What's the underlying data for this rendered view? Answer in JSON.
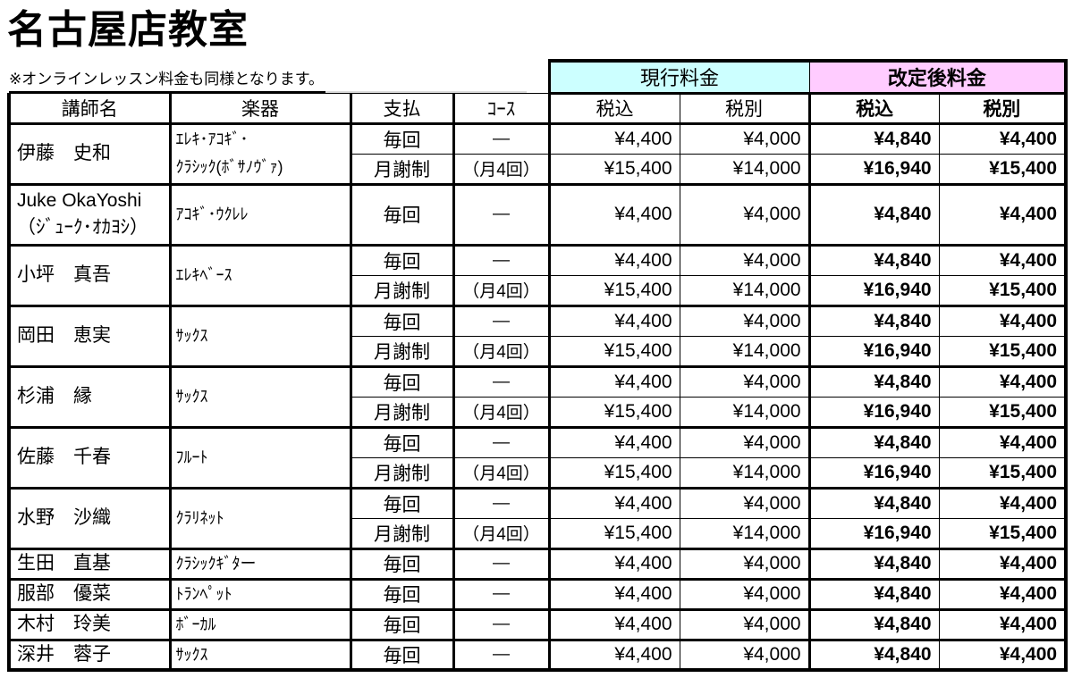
{
  "page": {
    "title": "名古屋店教室",
    "note": "※オンラインレッスン料金も同様となります。"
  },
  "table": {
    "column_headers": [
      "講師名",
      "楽器",
      "支払",
      "ｺｰｽ"
    ],
    "current": {
      "label": "現行料金",
      "color": "#CCFFFF",
      "sub": [
        "税込",
        "税別"
      ]
    },
    "revised": {
      "label": "改定後料金",
      "color": "#FFCCFF",
      "sub": [
        "税込",
        "税別"
      ]
    },
    "rows": [
      {
        "instructor": "伊藤　史和",
        "instrument": "ｴﾚｷ･ｱｺｷﾞ･\nｸﾗｼｯｸ(ﾎﾞｻﾉｳﾞｧ)",
        "plans": [
          {
            "payment": "毎回",
            "course": "―",
            "current_incl": "¥4,400",
            "current_excl": "¥4,000",
            "revised_incl": "¥4,840",
            "revised_excl": "¥4,400"
          },
          {
            "payment": "月謝制",
            "course": "（月4回）",
            "current_incl": "¥15,400",
            "current_excl": "¥14,000",
            "revised_incl": "¥16,940",
            "revised_excl": "¥15,400"
          }
        ]
      },
      {
        "instructor": "Juke OkaYoshi\n（ｼﾞｭｰｸ･ｵｶﾖｼ）",
        "instrument": "ｱｺｷﾞ･ｳｸﾚﾚ",
        "tall": true,
        "plans": [
          {
            "payment": "毎回",
            "course": "―",
            "current_incl": "¥4,400",
            "current_excl": "¥4,000",
            "revised_incl": "¥4,840",
            "revised_excl": "¥4,400"
          }
        ]
      },
      {
        "instructor": "小坪　真吾",
        "instrument": "ｴﾚｷﾍﾞｰｽ",
        "plans": [
          {
            "payment": "毎回",
            "course": "―",
            "current_incl": "¥4,400",
            "current_excl": "¥4,000",
            "revised_incl": "¥4,840",
            "revised_excl": "¥4,400"
          },
          {
            "payment": "月謝制",
            "course": "（月4回）",
            "current_incl": "¥15,400",
            "current_excl": "¥14,000",
            "revised_incl": "¥16,940",
            "revised_excl": "¥15,400"
          }
        ]
      },
      {
        "instructor": "岡田　恵実",
        "instrument": "ｻｯｸｽ",
        "plans": [
          {
            "payment": "毎回",
            "course": "―",
            "current_incl": "¥4,400",
            "current_excl": "¥4,000",
            "revised_incl": "¥4,840",
            "revised_excl": "¥4,400"
          },
          {
            "payment": "月謝制",
            "course": "（月4回）",
            "current_incl": "¥15,400",
            "current_excl": "¥14,000",
            "revised_incl": "¥16,940",
            "revised_excl": "¥15,400"
          }
        ]
      },
      {
        "instructor": "杉浦　縁",
        "instrument": "ｻｯｸｽ",
        "plans": [
          {
            "payment": "毎回",
            "course": "―",
            "current_incl": "¥4,400",
            "current_excl": "¥4,000",
            "revised_incl": "¥4,840",
            "revised_excl": "¥4,400"
          },
          {
            "payment": "月謝制",
            "course": "（月4回）",
            "current_incl": "¥15,400",
            "current_excl": "¥14,000",
            "revised_incl": "¥16,940",
            "revised_excl": "¥15,400"
          }
        ]
      },
      {
        "instructor": "佐藤　千春",
        "instrument": "ﾌﾙｰﾄ",
        "plans": [
          {
            "payment": "毎回",
            "course": "―",
            "current_incl": "¥4,400",
            "current_excl": "¥4,000",
            "revised_incl": "¥4,840",
            "revised_excl": "¥4,400"
          },
          {
            "payment": "月謝制",
            "course": "（月4回）",
            "current_incl": "¥15,400",
            "current_excl": "¥14,000",
            "revised_incl": "¥16,940",
            "revised_excl": "¥15,400"
          }
        ]
      },
      {
        "instructor": "水野　沙織",
        "instrument": "ｸﾗﾘﾈｯﾄ",
        "plans": [
          {
            "payment": "毎回",
            "course": "―",
            "current_incl": "¥4,400",
            "current_excl": "¥4,000",
            "revised_incl": "¥4,840",
            "revised_excl": "¥4,400"
          },
          {
            "payment": "月謝制",
            "course": "（月4回）",
            "current_incl": "¥15,400",
            "current_excl": "¥14,000",
            "revised_incl": "¥16,940",
            "revised_excl": "¥15,400"
          }
        ]
      },
      {
        "instructor": "生田　直基",
        "instrument": "ｸﾗｼｯｸｷﾞﾀー",
        "plans": [
          {
            "payment": "毎回",
            "course": "―",
            "current_incl": "¥4,400",
            "current_excl": "¥4,000",
            "revised_incl": "¥4,840",
            "revised_excl": "¥4,400"
          }
        ]
      },
      {
        "instructor": "服部　優菜",
        "instrument": "ﾄﾗﾝﾍﾟｯﾄ",
        "plans": [
          {
            "payment": "毎回",
            "course": "―",
            "current_incl": "¥4,400",
            "current_excl": "¥4,000",
            "revised_incl": "¥4,840",
            "revised_excl": "¥4,400"
          }
        ]
      },
      {
        "instructor": "木村　玲美",
        "instrument": "ﾎﾞｰｶﾙ",
        "plans": [
          {
            "payment": "毎回",
            "course": "―",
            "current_incl": "¥4,400",
            "current_excl": "¥4,000",
            "revised_incl": "¥4,840",
            "revised_excl": "¥4,400"
          }
        ]
      },
      {
        "instructor": "深井　蓉子",
        "instrument": "ｻｯｸｽ",
        "plans": [
          {
            "payment": "毎回",
            "course": "―",
            "current_incl": "¥4,400",
            "current_excl": "¥4,000",
            "revised_incl": "¥4,840",
            "revised_excl": "¥4,400"
          }
        ]
      }
    ]
  }
}
